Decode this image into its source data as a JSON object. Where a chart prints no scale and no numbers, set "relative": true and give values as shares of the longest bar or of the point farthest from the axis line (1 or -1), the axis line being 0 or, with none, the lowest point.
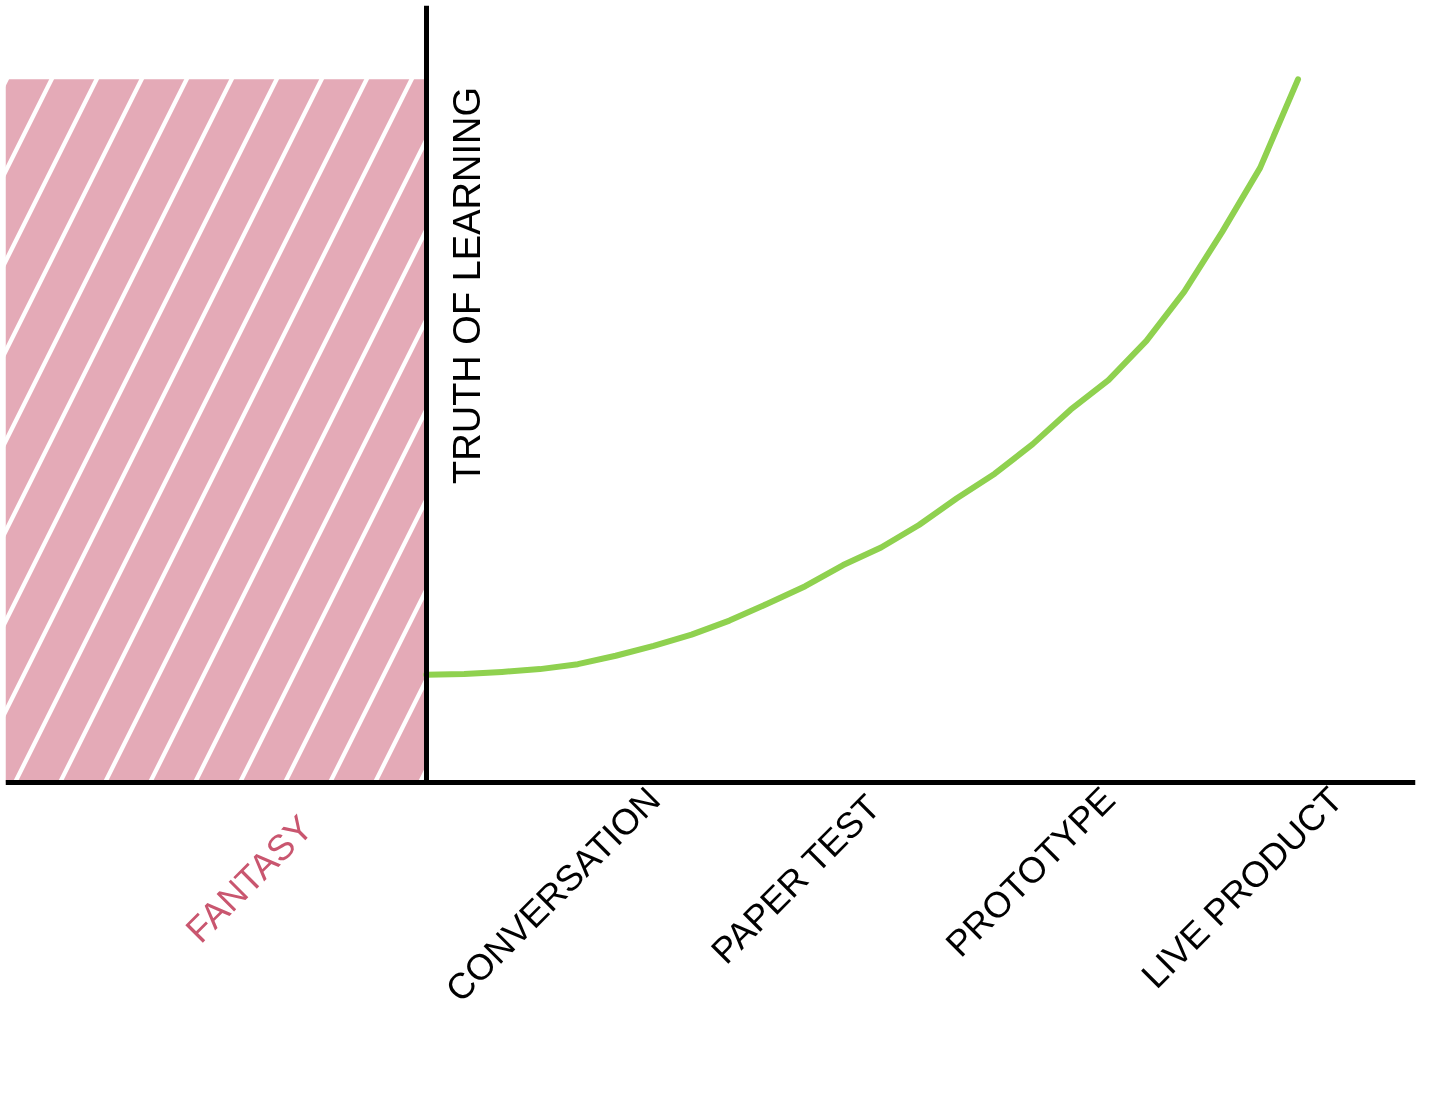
{
  "chart_data": {
    "type": "line",
    "relative": true,
    "ylabel": "TRUTH OF LEARNING",
    "categories": [
      null,
      null,
      null,
      null,
      null,
      null,
      "CONVERSATION",
      null,
      null,
      null,
      null,
      null,
      "PAPER  TEST",
      null,
      null,
      null,
      null,
      null,
      "PROTOTYPE",
      null,
      null,
      null,
      null,
      null,
      "LIVE PRODUCT"
    ],
    "series": [
      {
        "color": "#8fd14f",
        "values": [
          0.153,
          0.154,
          0.157,
          0.161,
          0.168,
          0.18,
          0.194,
          0.21,
          0.23,
          0.254,
          0.279,
          0.309,
          0.334,
          0.366,
          0.404,
          0.439,
          0.481,
          0.53,
          0.572,
          0.628,
          0.698,
          0.783,
          0.874,
          1.0,
          null
        ]
      }
    ],
    "annotations": [
      "FANTASY"
    ],
    "marker": "none",
    "line_style": "solid"
  }
}
